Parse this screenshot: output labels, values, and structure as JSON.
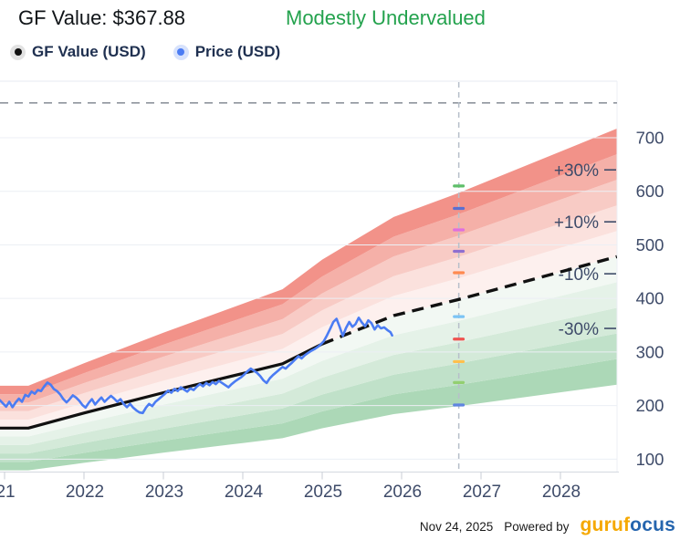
{
  "header": {
    "title": "GF Value: $367.88",
    "status": "Modestly Undervalued",
    "status_color": "#23a24d"
  },
  "legend": {
    "items": [
      {
        "label": "GF Value (USD)",
        "dot_color": "#111111",
        "halo_color": "rgba(60,60,60,0.15)"
      },
      {
        "label": "Price (USD)",
        "dot_color": "#4b7cf3",
        "halo_color": "rgba(75,124,243,0.22)"
      }
    ]
  },
  "footer": {
    "date": "Nov 24, 2025",
    "powered_by": "Powered by",
    "logo_segments": [
      {
        "text": "guruf",
        "color": "#f5a800"
      },
      {
        "text": "ocus",
        "color": "#2565ae"
      }
    ]
  },
  "chart_data": {
    "type": "line",
    "title": "GF Value: $367.88",
    "current_gf_value": 367.88,
    "valuation_status": "Modestly Undervalued",
    "x_range": [
      2020.94,
      2028.71
    ],
    "y_range": [
      75,
      790
    ],
    "grid": "horizontal-only",
    "axis": {
      "yticks": [
        100,
        200,
        300,
        400,
        500,
        600,
        700
      ],
      "xticks": [
        {
          "t": 2021,
          "label": "21"
        },
        {
          "t": 2022,
          "label": "2022"
        },
        {
          "t": 2023,
          "label": "2023"
        },
        {
          "t": 2024,
          "label": "2024"
        },
        {
          "t": 2025,
          "label": "2025"
        },
        {
          "t": 2026,
          "label": "2026"
        },
        {
          "t": 2027,
          "label": "2027"
        },
        {
          "t": 2028,
          "label": "2028"
        }
      ],
      "label_color": "#3e4b69"
    },
    "top_dashed_value": 765,
    "bands": {
      "multipliers": [
        0.5,
        0.6,
        0.7,
        0.8,
        0.9,
        1.0,
        1.1,
        1.2,
        1.3,
        1.4,
        1.5
      ],
      "colors_bottom_to_top": [
        "#acd8b7",
        "#c0e1c9",
        "#d4ead9",
        "#e5f2e8",
        "#f2f8f3",
        "#fdf0ee",
        "#fbe1dd",
        "#f8cbc5",
        "#f5b0a8",
        "#f29289"
      ],
      "labels": [
        {
          "text": "+30%",
          "at_value": 640
        },
        {
          "text": "+10%",
          "at_value": 543
        },
        {
          "text": "-10%",
          "at_value": 446
        },
        {
          "text": "-30%",
          "at_value": 344
        }
      ]
    },
    "series": [
      {
        "name": "GF Value (USD)",
        "color": "#111111",
        "solid": [
          [
            2020.94,
            158
          ],
          [
            2021.3,
            158
          ],
          [
            2022,
            186
          ],
          [
            2023,
            224
          ],
          [
            2024,
            260
          ],
          [
            2024.5,
            278
          ],
          [
            2025,
            315
          ]
        ],
        "dashed_projection": [
          [
            2025,
            315
          ],
          [
            2025.9,
            368
          ],
          [
            2026.72,
            398
          ],
          [
            2028.71,
            478
          ]
        ]
      },
      {
        "name": "Price (USD)",
        "color": "#4b7cf3",
        "points": [
          [
            2020.94,
            210
          ],
          [
            2020.98,
            204
          ],
          [
            2021.02,
            198
          ],
          [
            2021.06,
            207
          ],
          [
            2021.1,
            197
          ],
          [
            2021.14,
            206
          ],
          [
            2021.18,
            213
          ],
          [
            2021.22,
            207
          ],
          [
            2021.26,
            220
          ],
          [
            2021.3,
            217
          ],
          [
            2021.34,
            226
          ],
          [
            2021.38,
            222
          ],
          [
            2021.42,
            229
          ],
          [
            2021.46,
            227
          ],
          [
            2021.5,
            236
          ],
          [
            2021.54,
            243
          ],
          [
            2021.58,
            239
          ],
          [
            2021.62,
            231
          ],
          [
            2021.66,
            227
          ],
          [
            2021.7,
            221
          ],
          [
            2021.74,
            212
          ],
          [
            2021.78,
            206
          ],
          [
            2021.82,
            212
          ],
          [
            2021.86,
            219
          ],
          [
            2021.9,
            215
          ],
          [
            2021.94,
            209
          ],
          [
            2021.98,
            201
          ],
          [
            2022.02,
            196
          ],
          [
            2022.06,
            205
          ],
          [
            2022.1,
            212
          ],
          [
            2022.14,
            202
          ],
          [
            2022.18,
            209
          ],
          [
            2022.22,
            215
          ],
          [
            2022.26,
            207
          ],
          [
            2022.3,
            213
          ],
          [
            2022.34,
            218
          ],
          [
            2022.38,
            213
          ],
          [
            2022.42,
            207
          ],
          [
            2022.46,
            212
          ],
          [
            2022.5,
            203
          ],
          [
            2022.54,
            197
          ],
          [
            2022.58,
            203
          ],
          [
            2022.62,
            196
          ],
          [
            2022.66,
            191
          ],
          [
            2022.7,
            187
          ],
          [
            2022.74,
            186
          ],
          [
            2022.78,
            196
          ],
          [
            2022.82,
            203
          ],
          [
            2022.86,
            199
          ],
          [
            2022.9,
            207
          ],
          [
            2022.94,
            212
          ],
          [
            2022.98,
            217
          ],
          [
            2023.02,
            222
          ],
          [
            2023.06,
            228
          ],
          [
            2023.1,
            224
          ],
          [
            2023.14,
            231
          ],
          [
            2023.18,
            227
          ],
          [
            2023.22,
            234
          ],
          [
            2023.26,
            230
          ],
          [
            2023.3,
            226
          ],
          [
            2023.34,
            232
          ],
          [
            2023.38,
            229
          ],
          [
            2023.42,
            235
          ],
          [
            2023.46,
            240
          ],
          [
            2023.5,
            236
          ],
          [
            2023.54,
            242
          ],
          [
            2023.58,
            238
          ],
          [
            2023.62,
            244
          ],
          [
            2023.66,
            240
          ],
          [
            2023.7,
            246
          ],
          [
            2023.74,
            242
          ],
          [
            2023.78,
            238
          ],
          [
            2023.82,
            234
          ],
          [
            2023.86,
            240
          ],
          [
            2023.9,
            245
          ],
          [
            2023.94,
            249
          ],
          [
            2023.98,
            253
          ],
          [
            2024.02,
            258
          ],
          [
            2024.06,
            264
          ],
          [
            2024.1,
            269
          ],
          [
            2024.14,
            265
          ],
          [
            2024.18,
            261
          ],
          [
            2024.22,
            255
          ],
          [
            2024.26,
            247
          ],
          [
            2024.3,
            242
          ],
          [
            2024.34,
            251
          ],
          [
            2024.38,
            257
          ],
          [
            2024.42,
            262
          ],
          [
            2024.46,
            267
          ],
          [
            2024.5,
            272
          ],
          [
            2024.54,
            269
          ],
          [
            2024.58,
            275
          ],
          [
            2024.62,
            280
          ],
          [
            2024.66,
            286
          ],
          [
            2024.7,
            292
          ],
          [
            2024.74,
            288
          ],
          [
            2024.78,
            294
          ],
          [
            2024.82,
            298
          ],
          [
            2024.86,
            302
          ],
          [
            2024.9,
            305
          ],
          [
            2024.94,
            309
          ],
          [
            2024.98,
            314
          ],
          [
            2025.02,
            320
          ],
          [
            2025.06,
            331
          ],
          [
            2025.1,
            343
          ],
          [
            2025.14,
            356
          ],
          [
            2025.18,
            362
          ],
          [
            2025.22,
            347
          ],
          [
            2025.26,
            330
          ],
          [
            2025.3,
            345
          ],
          [
            2025.34,
            356
          ],
          [
            2025.38,
            347
          ],
          [
            2025.42,
            352
          ],
          [
            2025.46,
            364
          ],
          [
            2025.5,
            355
          ],
          [
            2025.54,
            348
          ],
          [
            2025.58,
            359
          ],
          [
            2025.62,
            354
          ],
          [
            2025.66,
            342
          ],
          [
            2025.7,
            350
          ],
          [
            2025.74,
            344
          ],
          [
            2025.78,
            346
          ],
          [
            2025.82,
            341
          ],
          [
            2025.86,
            337
          ],
          [
            2025.88,
            331
          ]
        ]
      }
    ],
    "projection_marker_line": {
      "x": 2026.72,
      "line_color": "#b7bfca",
      "markers": [
        {
          "value": 610,
          "color": "#5fbf6a"
        },
        {
          "value": 568,
          "color": "#5a6fd0"
        },
        {
          "value": 528,
          "color": "#de6fe0"
        },
        {
          "value": 488,
          "color": "#8f6fd0"
        },
        {
          "value": 448,
          "color": "#ff8a50"
        },
        {
          "value": 366,
          "color": "#7cc4f5"
        },
        {
          "value": 324,
          "color": "#ef5350"
        },
        {
          "value": 282,
          "color": "#ffc04d"
        },
        {
          "value": 243,
          "color": "#93cf70"
        },
        {
          "value": 201,
          "color": "#5f85e0"
        }
      ]
    },
    "legend_position": "top-left"
  }
}
